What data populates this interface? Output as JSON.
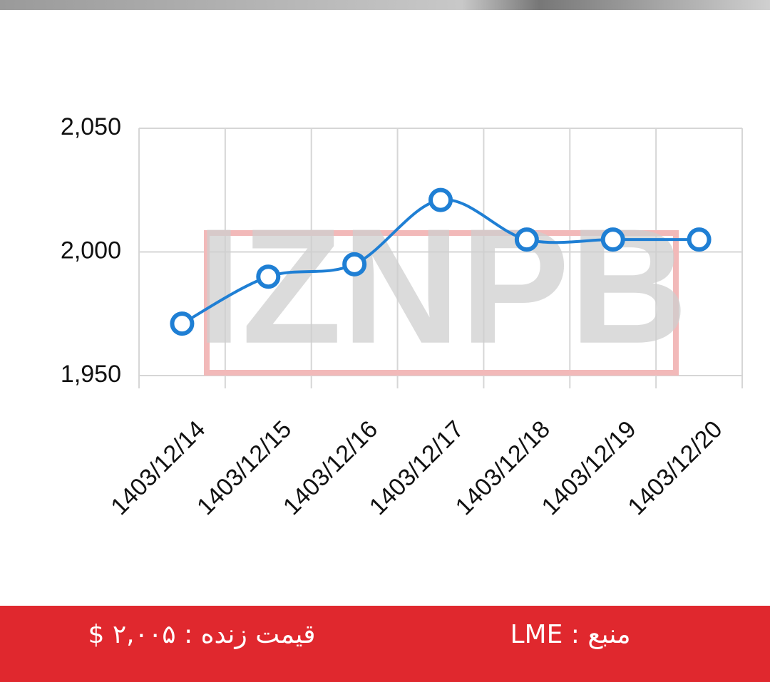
{
  "chart_data": {
    "type": "line",
    "watermark": "IZNPB",
    "categories": [
      "1403/12/14",
      "1403/12/15",
      "1403/12/16",
      "1403/12/17",
      "1403/12/18",
      "1403/12/19",
      "1403/12/20"
    ],
    "series": [
      {
        "color": "#1f7fd4",
        "values": [
          1971,
          1990,
          1995,
          2021,
          2005,
          2005,
          2005
        ]
      }
    ],
    "ylim": [
      1950,
      2050
    ],
    "yticks": [
      {
        "value": 1950,
        "label": "1,950"
      },
      {
        "value": 2000,
        "label": "2,000"
      },
      {
        "value": 2050,
        "label": "2,050"
      }
    ],
    "grid": true
  },
  "footer": {
    "price": "قیمت زنده : ۲,۰۰۵ $",
    "source": "منبع : LME"
  }
}
